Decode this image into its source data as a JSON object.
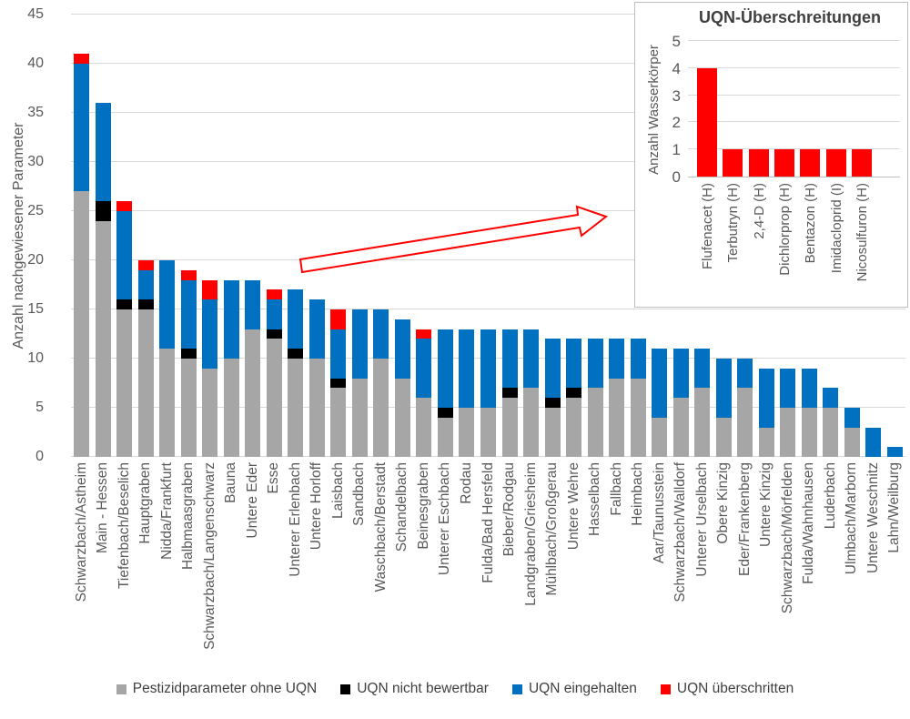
{
  "chart_data": [
    {
      "type": "bar",
      "stacked": true,
      "ylabel": "Anzahl nachgewiesener Parameter",
      "ylim": [
        0,
        45
      ],
      "ytick_step": 5,
      "grid": true,
      "legend_position": "bottom",
      "categories": [
        "Schwarzbach/Astheim",
        "Main - Hessen",
        "Tiefenbach/Beselich",
        "Hauptgraben",
        "Nidda/Frankfurt",
        "Halbmaasgraben",
        "Schwarzbach/Langenschwarz",
        "Bauna",
        "Untere Eder",
        "Esse",
        "Unterer Erlenbach",
        "Untere Horloff",
        "Laisbach",
        "Sandbach",
        "Waschbach/Berstadt",
        "Schandelbach",
        "Beinesgraben",
        "Unterer Eschbach",
        "Rodau",
        "Fulda/Bad Hersfeld",
        "Bieber/Rodgau",
        "Landgraben/Griesheim",
        "Mühlbach/Großgerau",
        "Untere Wehre",
        "Hasselbach",
        "Fallbach",
        "Heimbach",
        "Aar/Taunusstein",
        "Schwarzbach/Walldorf",
        "Unterer Urselbach",
        "Obere Kinzig",
        "Eder/Frankenberg",
        "Untere Kinzig",
        "Schwarzbach/Mörfelden",
        "Fulda/Wahnhausen",
        "Luderbach",
        "Ulmbach/Marborn",
        "Untere Weschnitz",
        "Lahn/Weilburg"
      ],
      "series": [
        {
          "name": "Pestizidparameter ohne UQN",
          "color": "#A6A6A6",
          "values": [
            27,
            24,
            15,
            15,
            11,
            10,
            9,
            10,
            13,
            12,
            10,
            10,
            7,
            8,
            10,
            8,
            6,
            4,
            5,
            5,
            6,
            7,
            5,
            6,
            7,
            8,
            8,
            4,
            6,
            7,
            4,
            7,
            3,
            5,
            5,
            5,
            3,
            0,
            0
          ]
        },
        {
          "name": "UQN nicht bewertbar",
          "color": "#000000",
          "values": [
            0,
            2,
            1,
            1,
            0,
            1,
            0,
            0,
            0,
            1,
            1,
            0,
            1,
            0,
            0,
            0,
            0,
            1,
            0,
            0,
            1,
            0,
            1,
            1,
            0,
            0,
            0,
            0,
            0,
            0,
            0,
            0,
            0,
            0,
            0,
            0,
            0,
            0,
            0
          ]
        },
        {
          "name": "UQN eingehalten",
          "color": "#0070C0",
          "values": [
            13,
            10,
            9,
            3,
            9,
            7,
            7,
            8,
            5,
            3,
            6,
            6,
            5,
            7,
            5,
            6,
            6,
            8,
            8,
            8,
            6,
            6,
            6,
            5,
            5,
            4,
            4,
            7,
            5,
            4,
            6,
            3,
            6,
            4,
            4,
            2,
            2,
            3,
            1
          ]
        },
        {
          "name": "UQN überschritten",
          "color": "#FF0000",
          "values": [
            1,
            0,
            1,
            1,
            0,
            1,
            2,
            0,
            0,
            1,
            0,
            0,
            2,
            0,
            0,
            0,
            1,
            0,
            0,
            0,
            0,
            0,
            0,
            0,
            0,
            0,
            0,
            0,
            0,
            0,
            0,
            0,
            0,
            0,
            0,
            0,
            0,
            0,
            0
          ]
        }
      ]
    },
    {
      "type": "bar",
      "title": "UQN-Überschreitungen",
      "ylabel": "Anzahl Wasserkörper",
      "ylim": [
        0,
        5
      ],
      "ytick_step": 1,
      "grid": true,
      "bar_color": "#FF0000",
      "categories": [
        "Flufenacet (H)",
        "Terbutryn (H)",
        "2,4-D (H)",
        "Dichlorprop (H)",
        "Bentazon (H)",
        "Imidacloprid (I)",
        "Nicosulfuron (H)"
      ],
      "values": [
        4,
        1,
        1,
        1,
        1,
        1,
        1
      ]
    }
  ],
  "legend": {
    "items": [
      {
        "label": "Pestizidparameter ohne UQN",
        "color": "#A6A6A6"
      },
      {
        "label": "UQN nicht bewertbar",
        "color": "#000000"
      },
      {
        "label": "UQN eingehalten",
        "color": "#0070C0"
      },
      {
        "label": "UQN überschritten",
        "color": "#FF0000"
      }
    ]
  },
  "annotations": {
    "arrow": {
      "color": "#FF0000"
    }
  },
  "colors": {
    "axis_text": "#595959",
    "gridline": "#D9D9D9",
    "inset_border": "#BFBFBF",
    "background": "#FFFFFF"
  }
}
